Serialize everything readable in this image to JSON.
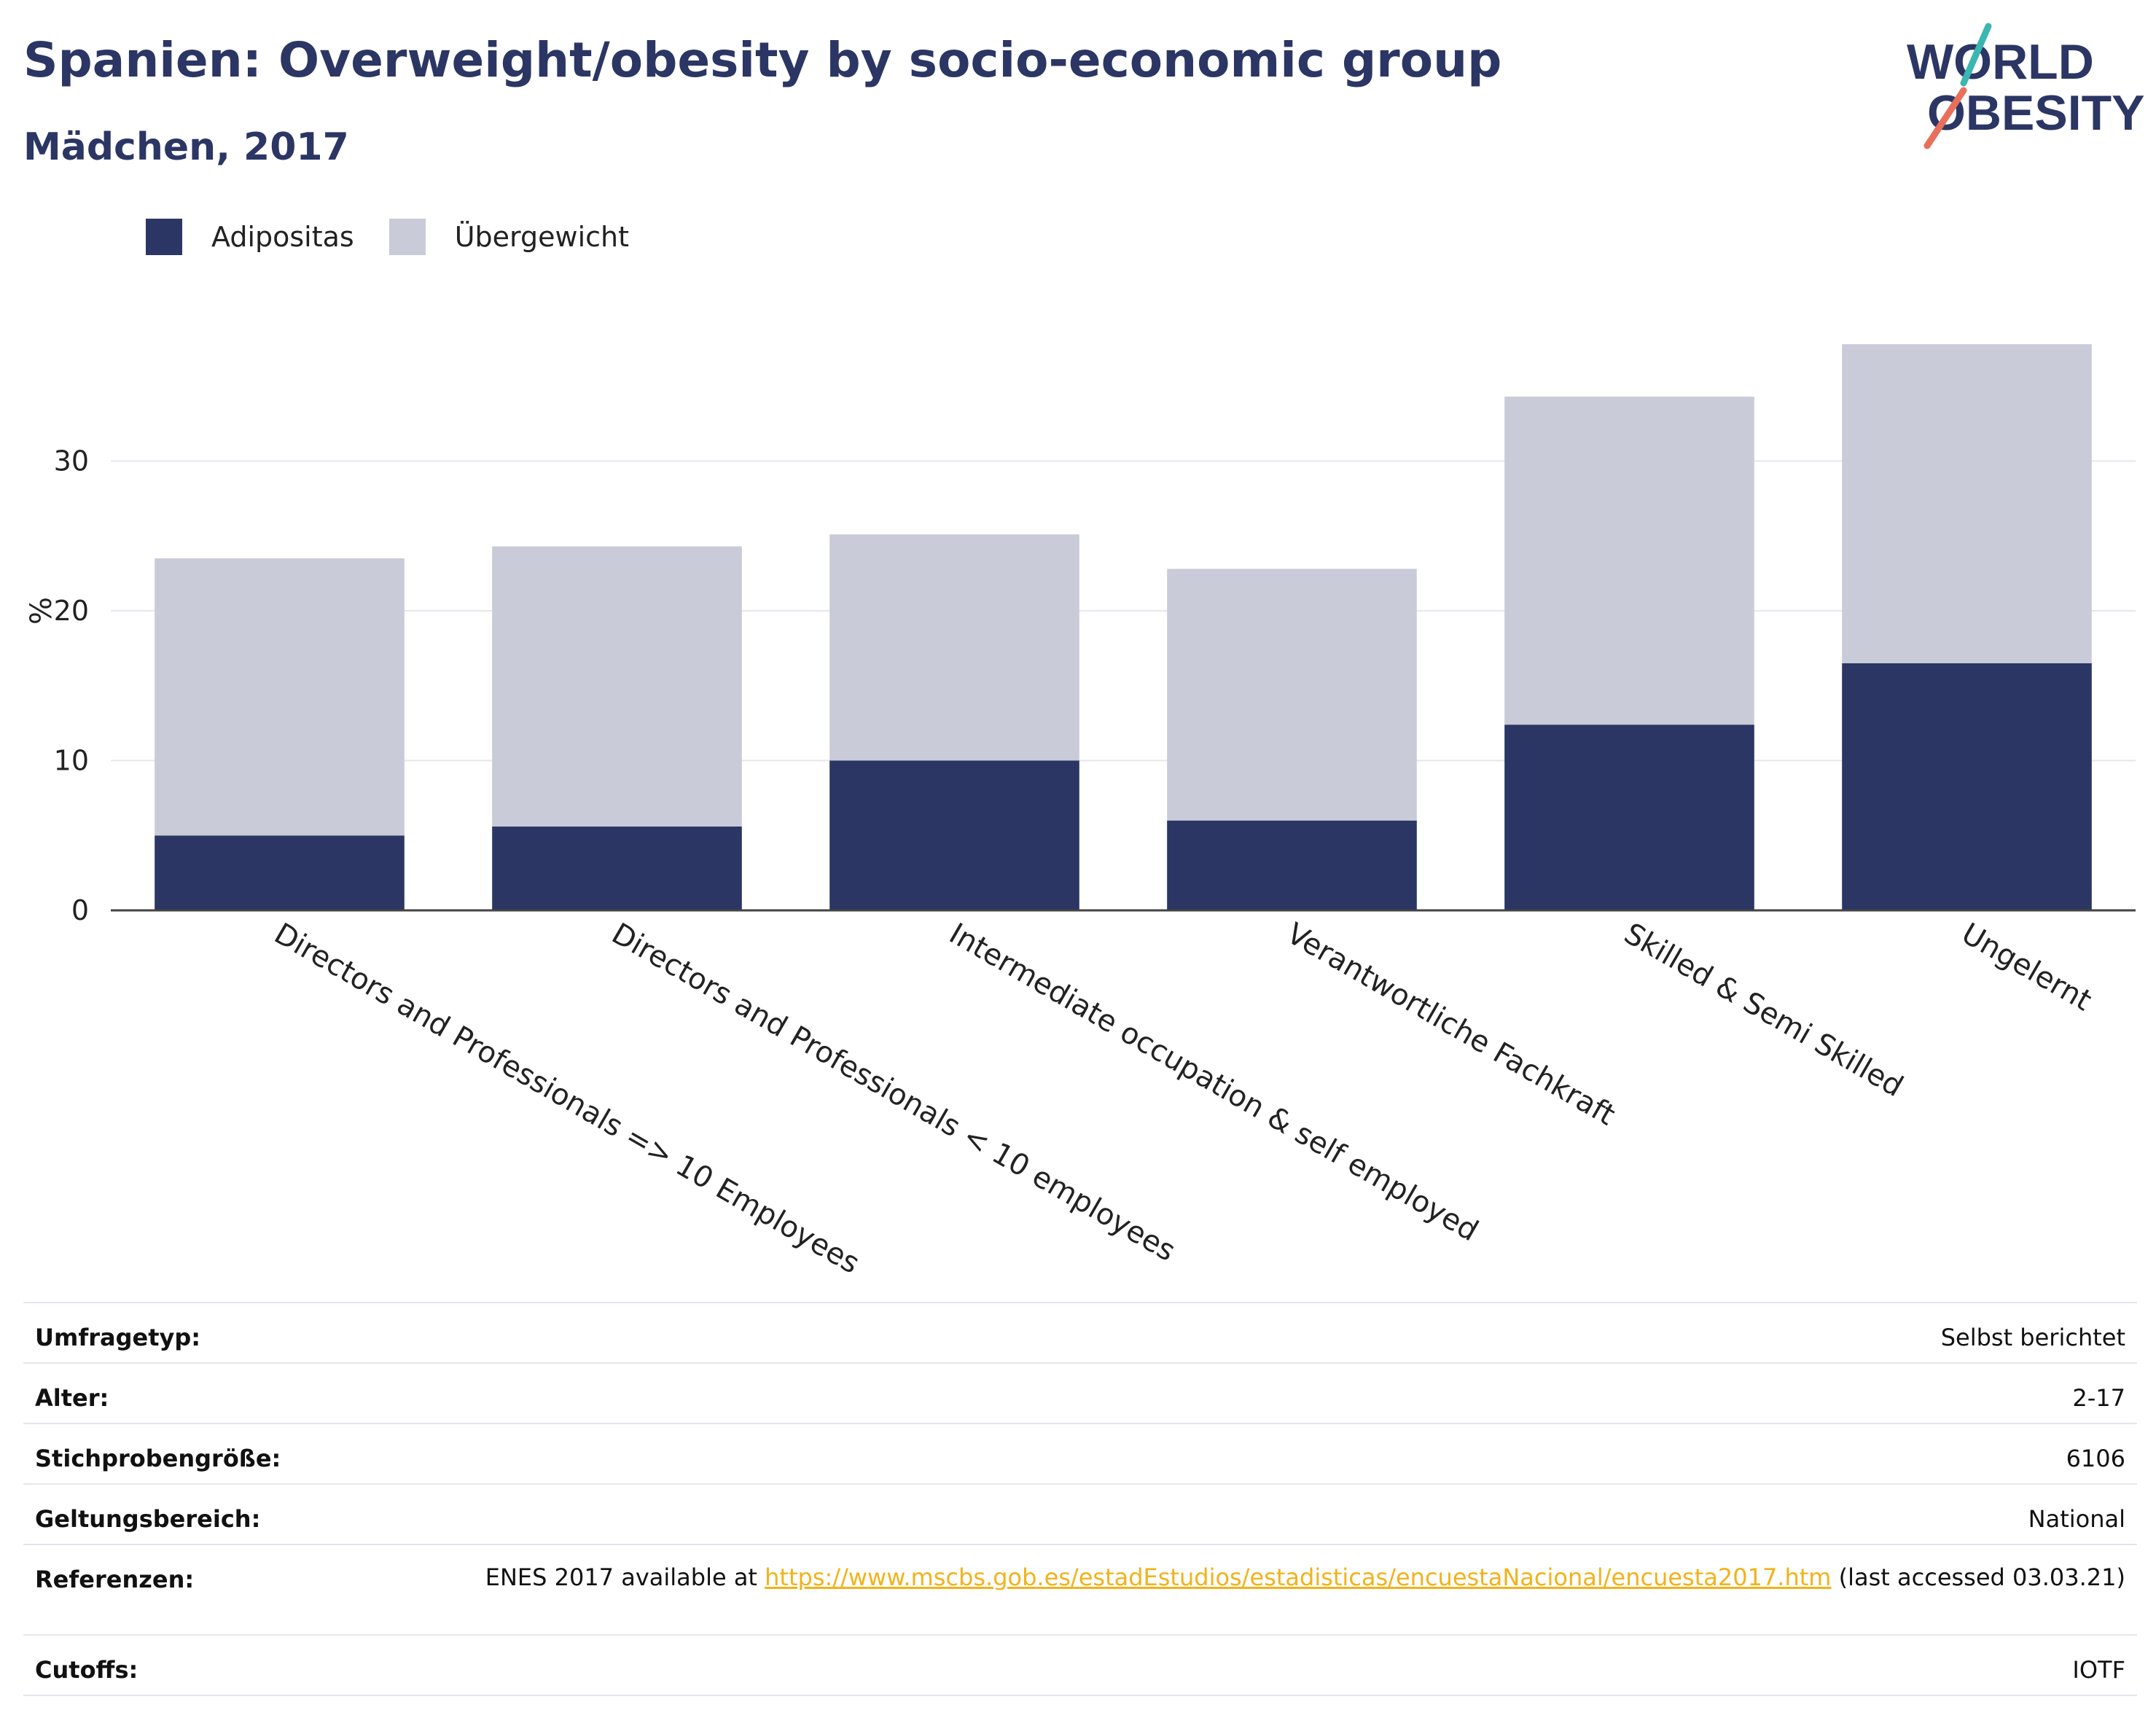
{
  "header": {
    "title": "Spanien: Overweight/obesity by socio-economic group",
    "subtitle": "Mädchen, 2017"
  },
  "logo": {
    "line1": "WORLD",
    "line2": "OBESITY",
    "name": "world-obesity-logo"
  },
  "colors": {
    "obesity": "#2b3664",
    "overweight": "#c9cbd8",
    "title": "#2b3664",
    "grid": "#e6e6ee",
    "link": "#f2b21a",
    "logo_teal": "#3bb6b0",
    "logo_coral": "#e8705a"
  },
  "legend": [
    {
      "label": "Adipositas",
      "color": "#2b3664"
    },
    {
      "label": "Übergewicht",
      "color": "#c9cbd8"
    }
  ],
  "chart_data": {
    "type": "bar",
    "stacked": true,
    "categories": [
      "Directors and Professionals => 10 Employees",
      "Directors and Professionals < 10 employees",
      "Intermediate occupation & self employed",
      "Verantwortliche Fachkraft",
      "Skilled & Semi Skilled",
      "Ungelernt"
    ],
    "series": [
      {
        "name": "Adipositas",
        "values": [
          5.0,
          5.6,
          10.0,
          6.0,
          12.4,
          16.5
        ]
      },
      {
        "name": "Übergewicht",
        "values": [
          18.5,
          18.7,
          15.1,
          16.8,
          21.9,
          21.3
        ]
      }
    ],
    "ylabel": "%",
    "xlabel": "",
    "ylim": [
      0,
      38.5
    ],
    "yticks": [
      0,
      10,
      20,
      30
    ],
    "grid": true,
    "legend_position": "top-left"
  },
  "info": [
    {
      "key": "Umfragetyp:",
      "value": "Selbst berichtet"
    },
    {
      "key": "Alter:",
      "value": "2-17"
    },
    {
      "key": "Stichprobengröße:",
      "value": "6106"
    },
    {
      "key": "Geltungsbereich:",
      "value": "National"
    },
    {
      "key": "Referenzen:",
      "value_prefix": "ENES 2017 available at ",
      "link": "https://www.mscbs.gob.es/estadEstudios/estadisticas/encuestaNacional/encuesta2017.htm",
      "value_suffix": " (last accessed 03.03.21)"
    },
    {
      "key": "Cutoffs:",
      "value": "IOTF"
    }
  ]
}
